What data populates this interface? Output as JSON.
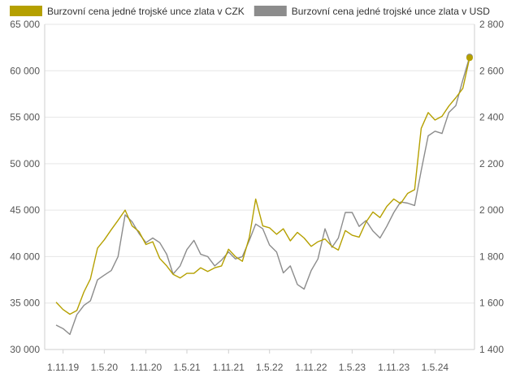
{
  "chart_data": {
    "type": "line",
    "title": "",
    "legend": [
      {
        "label": "Burzovní cena jedné trojské unce zlata v CZK",
        "color": "#b5a000"
      },
      {
        "label": "Burzovní cena jedné trojské unce zlata v USD",
        "color": "#8c8c8c"
      }
    ],
    "legend_placement": "top-left",
    "grid": true,
    "x_ticks": [
      "1.11.19",
      "1.5.20",
      "1.11.20",
      "1.5.21",
      "1.11.21",
      "1.5.22",
      "1.11.22",
      "1.5.23",
      "1.11.23",
      "1.5.24"
    ],
    "y_left": {
      "ylim": [
        30000,
        65000
      ],
      "ticks": [
        30000,
        35000,
        40000,
        45000,
        50000,
        55000,
        60000,
        65000
      ],
      "tick_labels": [
        "30 000",
        "35 000",
        "40 000",
        "45 000",
        "50 000",
        "55 000",
        "60 000",
        "65 000"
      ]
    },
    "y_right": {
      "ylim": [
        1400,
        2800
      ],
      "ticks": [
        1400,
        1600,
        1800,
        2000,
        2200,
        2400,
        2600,
        2800
      ],
      "tick_labels": [
        "1 400",
        "1 600",
        "1 800",
        "2 000",
        "2 200",
        "2 400",
        "2 600",
        "2 800"
      ]
    },
    "x": [
      "2019-10-01",
      "2019-11-01",
      "2019-12-01",
      "2020-01-01",
      "2020-02-01",
      "2020-03-01",
      "2020-04-01",
      "2020-05-01",
      "2020-06-01",
      "2020-07-01",
      "2020-08-01",
      "2020-09-01",
      "2020-10-01",
      "2020-11-01",
      "2020-12-01",
      "2021-01-01",
      "2021-02-01",
      "2021-03-01",
      "2021-04-01",
      "2021-05-01",
      "2021-06-01",
      "2021-07-01",
      "2021-08-01",
      "2021-09-01",
      "2021-10-01",
      "2021-11-01",
      "2021-12-01",
      "2022-01-01",
      "2022-02-01",
      "2022-03-01",
      "2022-04-01",
      "2022-05-01",
      "2022-06-01",
      "2022-07-01",
      "2022-08-01",
      "2022-09-01",
      "2022-10-01",
      "2022-11-01",
      "2022-12-01",
      "2023-01-01",
      "2023-02-01",
      "2023-03-01",
      "2023-04-01",
      "2023-05-01",
      "2023-06-01",
      "2023-07-01",
      "2023-08-01",
      "2023-09-01",
      "2023-10-01",
      "2023-11-01",
      "2023-12-01",
      "2024-01-01",
      "2024-02-01",
      "2024-03-01",
      "2024-04-01",
      "2024-05-01",
      "2024-06-01",
      "2024-07-01",
      "2024-08-01",
      "2024-09-01",
      "2024-10-01"
    ],
    "series": [
      {
        "name": "Burzovní cena jedné trojské unce zlata v CZK",
        "axis": "left",
        "values": [
          35100,
          34300,
          33800,
          34200,
          36200,
          37600,
          40900,
          41800,
          42900,
          43900,
          45000,
          43300,
          42700,
          41300,
          41600,
          39800,
          39000,
          38100,
          37700,
          38200,
          38200,
          38800,
          38400,
          38800,
          39000,
          40800,
          40000,
          39500,
          42100,
          46200,
          43300,
          43100,
          42400,
          43000,
          41700,
          42600,
          42000,
          41100,
          41600,
          41900,
          41100,
          40700,
          42800,
          42300,
          42100,
          43700,
          44800,
          44200,
          45400,
          46200,
          45700,
          46800,
          47200,
          53800,
          55500,
          54700,
          55100,
          56200,
          57100,
          58100,
          61400
        ]
      },
      {
        "name": "Burzovní cena jedné trojské unce zlata v USD",
        "axis": "right",
        "values": [
          1505,
          1490,
          1465,
          1550,
          1590,
          1610,
          1700,
          1720,
          1740,
          1800,
          1980,
          1950,
          1900,
          1860,
          1880,
          1860,
          1810,
          1725,
          1760,
          1830,
          1870,
          1810,
          1800,
          1760,
          1785,
          1820,
          1790,
          1800,
          1870,
          1940,
          1920,
          1850,
          1820,
          1730,
          1760,
          1680,
          1660,
          1740,
          1790,
          1920,
          1840,
          1880,
          1990,
          1990,
          1930,
          1955,
          1910,
          1880,
          1930,
          1990,
          2035,
          2030,
          2020,
          2170,
          2320,
          2340,
          2330,
          2420,
          2450,
          2560,
          2660
        ]
      }
    ],
    "end_markers": true
  }
}
